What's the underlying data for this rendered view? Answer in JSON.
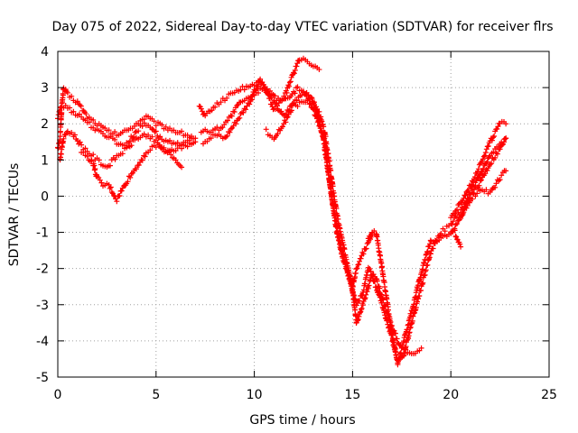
{
  "chart_data": {
    "type": "scatter",
    "title": "Day 075 of 2022, Sidereal Day-to-day VTEC variation (SDTVAR) for receiver flrs",
    "xlabel": "GPS time / hours",
    "ylabel": "SDTVAR / TECUs",
    "xlim": [
      0,
      25
    ],
    "ylim": [
      -5,
      4
    ],
    "xticks": [
      0,
      5,
      10,
      15,
      20,
      25
    ],
    "xtick_labels": [
      "0",
      "5",
      "10",
      "15",
      "20",
      "25"
    ],
    "yticks": [
      -5,
      -4,
      -3,
      -2,
      -1,
      0,
      1,
      2,
      3,
      4
    ],
    "ytick_labels": [
      "-5",
      "-4",
      "-3",
      "-2",
      "-1",
      "0",
      "1",
      "2",
      "3",
      "4"
    ],
    "grid": true,
    "marker": "+",
    "color": "#ff0000",
    "series": [
      {
        "x": [
          0.0,
          0.2,
          0.3,
          0.5,
          1.0,
          1.5,
          2.0,
          2.5,
          3.0,
          3.5,
          4.0,
          4.5,
          5.0,
          5.5,
          6.0,
          6.5,
          7.0
        ],
        "values": [
          2.2,
          2.5,
          3.0,
          2.8,
          2.6,
          2.2,
          2.0,
          1.8,
          1.7,
          1.8,
          2.0,
          2.2,
          2.0,
          1.9,
          1.8,
          1.7,
          1.6
        ]
      },
      {
        "x": [
          0.0,
          0.1,
          0.2,
          0.4,
          0.6,
          0.9,
          1.2,
          1.6,
          2.0,
          2.4,
          2.8,
          3.2,
          3.6,
          4.0,
          4.4,
          4.8,
          5.2,
          5.6,
          6.0,
          6.4,
          6.8
        ],
        "values": [
          1.3,
          1.5,
          2.4,
          2.5,
          2.4,
          2.3,
          2.2,
          2.0,
          1.8,
          1.7,
          1.6,
          1.4,
          1.5,
          1.8,
          2.0,
          1.9,
          1.6,
          1.5,
          1.4,
          1.5,
          1.6
        ]
      },
      {
        "x": [
          0.1,
          0.3,
          0.5,
          0.8,
          1.2,
          1.6,
          2.0,
          2.5,
          3.0,
          3.5,
          4.0,
          4.5,
          5.0,
          5.5,
          6.0,
          6.5,
          7.0
        ],
        "values": [
          1.0,
          1.6,
          1.8,
          1.7,
          1.4,
          1.2,
          1.0,
          0.8,
          1.1,
          1.3,
          1.6,
          1.7,
          1.5,
          1.2,
          1.3,
          1.4,
          1.5
        ]
      },
      {
        "x": [
          1.2,
          1.5,
          1.8,
          2.0,
          2.3,
          2.6,
          3.0,
          3.5,
          4.0,
          4.5,
          5.0,
          5.5,
          6.0,
          6.3
        ],
        "values": [
          1.2,
          1.1,
          0.9,
          0.5,
          0.3,
          0.3,
          -0.1,
          0.4,
          0.8,
          1.2,
          1.4,
          1.3,
          1.0,
          0.8
        ]
      },
      {
        "x": [
          7.2,
          7.5,
          8.0,
          8.5,
          9.0,
          9.5,
          10.0,
          10.3,
          10.6,
          11.0,
          11.5,
          12.0,
          12.3,
          12.6,
          13.0,
          13.3
        ],
        "values": [
          2.5,
          2.2,
          2.5,
          2.7,
          2.9,
          3.0,
          3.1,
          3.2,
          2.9,
          2.4,
          2.7,
          3.4,
          3.8,
          3.8,
          3.6,
          3.5
        ]
      },
      {
        "x": [
          7.3,
          7.8,
          8.3,
          8.8,
          9.3,
          9.8,
          10.3,
          10.8,
          11.3,
          11.8,
          12.2,
          12.6,
          13.0,
          13.3,
          13.6,
          13.8,
          14.0,
          14.2,
          14.4,
          14.6,
          14.8,
          15.0,
          15.2,
          15.5,
          15.8,
          16.0
        ],
        "values": [
          1.8,
          1.8,
          1.9,
          2.2,
          2.6,
          2.7,
          3.2,
          2.9,
          2.6,
          2.7,
          3.0,
          2.8,
          2.4,
          2.0,
          1.5,
          0.5,
          -0.2,
          -0.8,
          -1.4,
          -1.8,
          -2.2,
          -2.5,
          -2.0,
          -1.6,
          -1.3,
          -1.0
        ]
      },
      {
        "x": [
          7.4,
          8.0,
          8.5,
          9.0,
          9.5,
          10.0,
          10.5,
          11.0,
          11.5,
          12.0,
          12.5,
          13.0,
          13.3,
          13.6,
          13.9,
          14.2,
          14.5,
          14.8,
          15.0,
          15.2,
          15.5,
          15.8,
          16.2,
          16.5,
          17.0,
          17.3,
          17.5,
          17.8,
          18.2,
          18.5
        ],
        "values": [
          1.5,
          1.7,
          1.6,
          2.0,
          2.4,
          2.8,
          3.0,
          2.6,
          2.2,
          2.6,
          2.9,
          2.6,
          2.3,
          1.7,
          0.6,
          -0.5,
          -1.3,
          -2.0,
          -2.6,
          -3.0,
          -2.7,
          -2.0,
          -2.3,
          -2.8,
          -3.6,
          -4.0,
          -4.2,
          -4.3,
          -4.3,
          -4.2
        ]
      },
      {
        "x": [
          10.6,
          11.0,
          11.5,
          12.0,
          12.5,
          12.9,
          13.2,
          13.5,
          13.8,
          14.0,
          14.2,
          14.5,
          14.8,
          15.0,
          15.2,
          15.5,
          15.8,
          16.0,
          16.5,
          17.0,
          17.3,
          17.6,
          18.0,
          18.4,
          18.7,
          19.0,
          19.4,
          19.8,
          20.2,
          20.5
        ],
        "values": [
          1.8,
          1.6,
          2.0,
          2.5,
          2.6,
          2.7,
          2.3,
          1.6,
          0.5,
          -0.3,
          -1.0,
          -1.7,
          -2.2,
          -2.6,
          -3.5,
          -3.0,
          -2.5,
          -2.2,
          -3.0,
          -3.9,
          -4.6,
          -4.0,
          -3.2,
          -2.3,
          -1.7,
          -1.2,
          -1.2,
          -1.1,
          -1.0,
          -1.4
        ]
      },
      {
        "x": [
          15.8,
          16.0,
          16.2,
          16.5,
          17.0,
          17.3,
          17.6,
          18.0,
          18.5,
          19.0,
          19.5,
          20.0,
          20.5,
          21.0,
          21.5,
          22.0,
          22.5,
          22.8
        ],
        "values": [
          -1.2,
          -1.0,
          -1.0,
          -2.0,
          -3.8,
          -4.6,
          -4.4,
          -3.5,
          -2.5,
          -1.5,
          -1.0,
          -0.8,
          -0.4,
          0.0,
          0.4,
          0.9,
          1.3,
          1.6
        ]
      },
      {
        "x": [
          20.0,
          20.5,
          21.0,
          21.5,
          22.0,
          22.5,
          22.8
        ],
        "values": [
          -0.6,
          -0.2,
          0.3,
          0.9,
          1.5,
          2.0,
          2.0
        ]
      },
      {
        "x": [
          20.5,
          21.0,
          21.5,
          22.0,
          22.5,
          22.8
        ],
        "values": [
          -0.6,
          0.1,
          0.6,
          1.1,
          1.4,
          1.6
        ]
      },
      {
        "x": [
          20.0,
          20.5,
          21.0,
          21.5,
          22.0,
          22.5,
          22.8
        ],
        "values": [
          -1.0,
          -0.6,
          -0.1,
          0.2,
          0.1,
          0.5,
          0.7
        ]
      }
    ]
  }
}
